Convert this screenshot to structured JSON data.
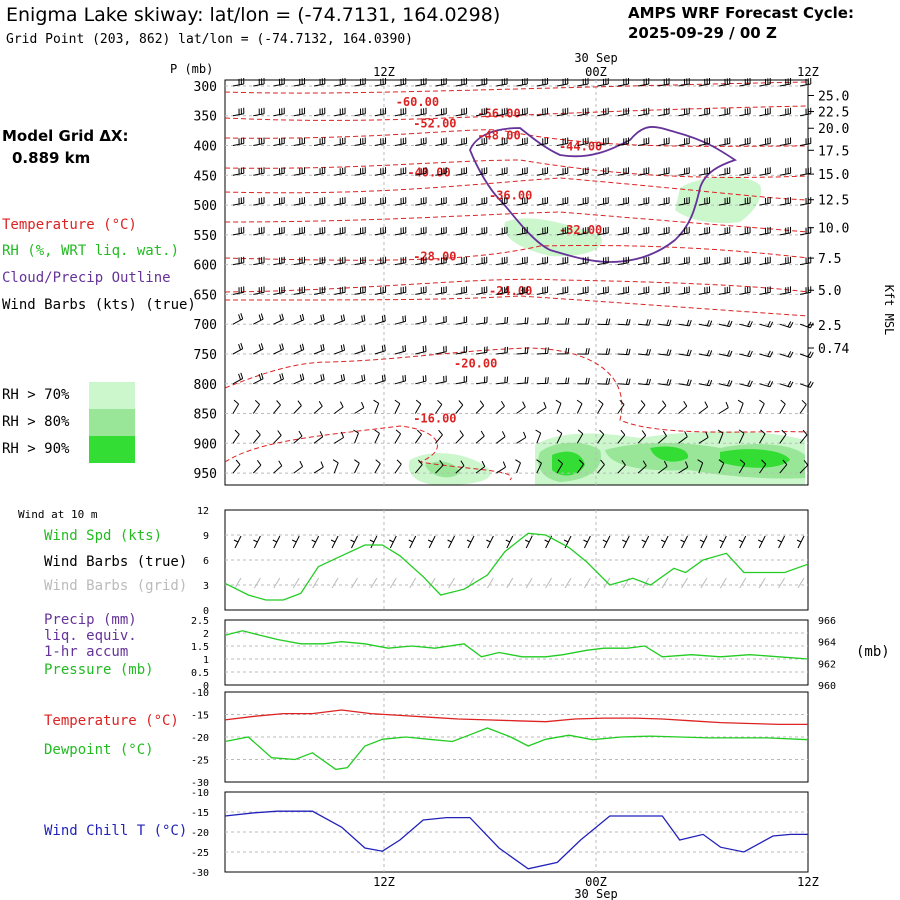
{
  "header": {
    "title": "Enigma Lake skiway:  lat/lon = (-74.7131, 164.0298)",
    "subtitle": "Grid Point (203, 862) lat/lon = (-74.7132, 164.0390)",
    "cycle_line1": "AMPS WRF Forecast Cycle:",
    "cycle_line2": "2025-09-29 / 00  Z",
    "grid_label_1": "Model Grid ΔX:",
    "grid_label_2": "0.889 km"
  },
  "legend": {
    "temperature": "Temperature (°C)",
    "rh": "RH (%, WRT liq. wat.)",
    "cloud": "Cloud/Precip Outline",
    "wind": "Wind Barbs (kts) (true)",
    "rh70": "RH > 70%",
    "rh80": "RH > 80%",
    "rh90": "RH > 90%",
    "colors": {
      "rh70": "#ccf6cc",
      "rh80": "#99e699",
      "rh90": "#33dd33"
    }
  },
  "time_axis": {
    "date_label": "30 Sep",
    "ticks": [
      "12Z",
      "00Z",
      "12Z"
    ],
    "ticks_frac": [
      0,
      0.2727,
      0.6364,
      1.0
    ]
  },
  "chart_data": [
    {
      "type": "line",
      "title": "",
      "ylabel": "P (mb)",
      "y2label": "Kft MSL",
      "pressure_levels": [
        300,
        350,
        400,
        450,
        500,
        550,
        600,
        650,
        700,
        750,
        800,
        850,
        900,
        950
      ],
      "ylim": [
        290,
        970
      ],
      "kft_ticks": [
        {
          "label": "25.0",
          "p": 316
        },
        {
          "label": "22.5",
          "p": 343
        },
        {
          "label": "20.0",
          "p": 371
        },
        {
          "label": "17.5",
          "p": 408
        },
        {
          "label": "15.0",
          "p": 448
        },
        {
          "label": "12.5",
          "p": 491
        },
        {
          "label": "10.0",
          "p": 538
        },
        {
          "label": "7.5",
          "p": 589
        },
        {
          "label": "5.0",
          "p": 643
        },
        {
          "label": "2.5",
          "p": 701
        },
        {
          "label": "0.74",
          "p": 740
        }
      ],
      "temperature_contours": [
        {
          "label": "-60.00",
          "t": 0.33,
          "p": 327
        },
        {
          "label": "-56.00",
          "t": 0.47,
          "p": 346
        },
        {
          "label": "-52.00",
          "t": 0.36,
          "p": 363
        },
        {
          "label": "-48.00",
          "t": 0.47,
          "p": 383
        },
        {
          "label": "-44.00",
          "t": 0.61,
          "p": 402
        },
        {
          "label": "-40.00",
          "t": 0.35,
          "p": 445
        },
        {
          "label": "-36.00",
          "t": 0.49,
          "p": 484
        },
        {
          "label": "-32.00",
          "t": 0.61,
          "p": 542
        },
        {
          "label": "-28.00",
          "t": 0.36,
          "p": 586
        },
        {
          "label": "-24.00",
          "t": 0.49,
          "p": 644
        },
        {
          "label": "-20.00",
          "t": 0.43,
          "p": 766
        },
        {
          "label": "-16.00",
          "t": 0.36,
          "p": 858
        }
      ]
    },
    {
      "type": "line",
      "title": "Wind at 10 m",
      "ylim": [
        0,
        12
      ],
      "yticks": [
        0,
        3,
        6,
        9,
        12
      ],
      "series": [
        {
          "name": "Wind Spd (kts)",
          "color": "#22cc22",
          "x": [
            0,
            0.04,
            0.07,
            0.1,
            0.13,
            0.16,
            0.2,
            0.24,
            0.27,
            0.3,
            0.34,
            0.37,
            0.41,
            0.45,
            0.48,
            0.52,
            0.55,
            0.59,
            0.62,
            0.66,
            0.7,
            0.73,
            0.77,
            0.79,
            0.82,
            0.86,
            0.89,
            0.93,
            0.96,
            1.0
          ],
          "values": [
            3.2,
            1.8,
            1.2,
            1.2,
            2.0,
            5.2,
            6.5,
            7.8,
            7.8,
            6.5,
            4.0,
            1.8,
            2.5,
            4.2,
            7.0,
            9.2,
            9.0,
            7.5,
            5.8,
            3.0,
            3.8,
            3.0,
            5.0,
            4.5,
            6.0,
            6.8,
            4.5,
            4.5,
            4.5,
            5.5
          ]
        }
      ],
      "labels": {
        "speed": "Wind Spd (kts)",
        "barbs_true": "Wind Barbs (true)",
        "barbs_grid": "Wind Barbs (grid)"
      }
    },
    {
      "type": "line",
      "ylim": [
        0,
        2.5
      ],
      "yticks": [
        0,
        0.5,
        1.0,
        1.5,
        2.0,
        2.5
      ],
      "ylim_right": [
        960,
        966
      ],
      "yticks_right": [
        960,
        962,
        964,
        966
      ],
      "ylabel_right": "(mb)",
      "labels": {
        "precip": "Precip (mm)",
        "liq": "liq. equiv.",
        "accum": "1-hr accum",
        "pressure": "Pressure (mb)"
      },
      "series": [
        {
          "name": "Pressure (mb)",
          "color": "#22cc22",
          "x": [
            0,
            0.03,
            0.06,
            0.09,
            0.13,
            0.17,
            0.2,
            0.24,
            0.28,
            0.32,
            0.36,
            0.41,
            0.44,
            0.47,
            0.51,
            0.55,
            0.58,
            0.62,
            0.65,
            0.69,
            0.72,
            0.75,
            0.8,
            0.85,
            0.9,
            0.95,
            1.0
          ],
          "values": [
            964.6,
            965.0,
            964.6,
            964.2,
            963.8,
            963.8,
            964.0,
            963.8,
            963.4,
            963.6,
            963.4,
            963.8,
            962.6,
            963.0,
            962.6,
            962.6,
            962.8,
            963.2,
            963.4,
            963.4,
            963.6,
            962.6,
            962.8,
            962.6,
            962.8,
            962.6,
            962.4
          ]
        }
      ]
    },
    {
      "type": "line",
      "ylim": [
        -30,
        -10
      ],
      "yticks": [
        -30,
        -25,
        -20,
        -15,
        -10
      ],
      "labels": {
        "temperature": "Temperature (°C)",
        "dewpoint": "Dewpoint (°C)"
      },
      "series": [
        {
          "name": "Temperature (°C)",
          "color": "#dd2222",
          "x": [
            0,
            0.05,
            0.1,
            0.15,
            0.2,
            0.25,
            0.3,
            0.35,
            0.4,
            0.45,
            0.5,
            0.55,
            0.6,
            0.65,
            0.7,
            0.75,
            0.8,
            0.85,
            0.9,
            0.95,
            1.0
          ],
          "values": [
            -16.2,
            -15.4,
            -14.8,
            -14.8,
            -14.0,
            -14.8,
            -15.2,
            -15.6,
            -16.0,
            -16.2,
            -16.4,
            -16.6,
            -16.0,
            -15.8,
            -15.8,
            -16.0,
            -16.4,
            -16.8,
            -17.0,
            -17.2,
            -17.2
          ]
        },
        {
          "name": "Dewpoint (°C)",
          "color": "#22cc22",
          "x": [
            0,
            0.04,
            0.08,
            0.12,
            0.15,
            0.19,
            0.21,
            0.24,
            0.27,
            0.31,
            0.35,
            0.39,
            0.42,
            0.45,
            0.49,
            0.52,
            0.55,
            0.59,
            0.63,
            0.68,
            0.73,
            0.78,
            0.83,
            0.88,
            0.93,
            1.0
          ],
          "values": [
            -21.0,
            -20.0,
            -24.6,
            -25.0,
            -23.5,
            -27.2,
            -26.8,
            -22.0,
            -20.5,
            -20.0,
            -20.5,
            -21.0,
            -19.5,
            -18.0,
            -20.0,
            -22.0,
            -20.5,
            -19.6,
            -20.6,
            -20.0,
            -19.8,
            -20.0,
            -20.2,
            -20.2,
            -20.2,
            -20.6
          ]
        }
      ]
    },
    {
      "type": "line",
      "ylim": [
        -30,
        -10
      ],
      "yticks": [
        -30,
        -25,
        -20,
        -15,
        -10
      ],
      "labels": {
        "windchill": "Wind Chill T (°C)"
      },
      "series": [
        {
          "name": "Wind Chill T (°C)",
          "color": "#2222bb",
          "x": [
            0,
            0.05,
            0.09,
            0.15,
            0.2,
            0.24,
            0.27,
            0.3,
            0.34,
            0.38,
            0.42,
            0.47,
            0.52,
            0.57,
            0.61,
            0.66,
            0.7,
            0.75,
            0.78,
            0.82,
            0.85,
            0.89,
            0.94,
            0.97,
            1.0
          ],
          "values": [
            -16.0,
            -15.2,
            -14.8,
            -14.8,
            -18.8,
            -24.0,
            -24.8,
            -22.0,
            -17.0,
            -16.4,
            -16.4,
            -24.0,
            -29.2,
            -27.6,
            -22.0,
            -16.0,
            -16.0,
            -16.0,
            -22.0,
            -20.6,
            -23.8,
            -25.0,
            -21.0,
            -20.6,
            -20.6
          ]
        }
      ]
    }
  ]
}
